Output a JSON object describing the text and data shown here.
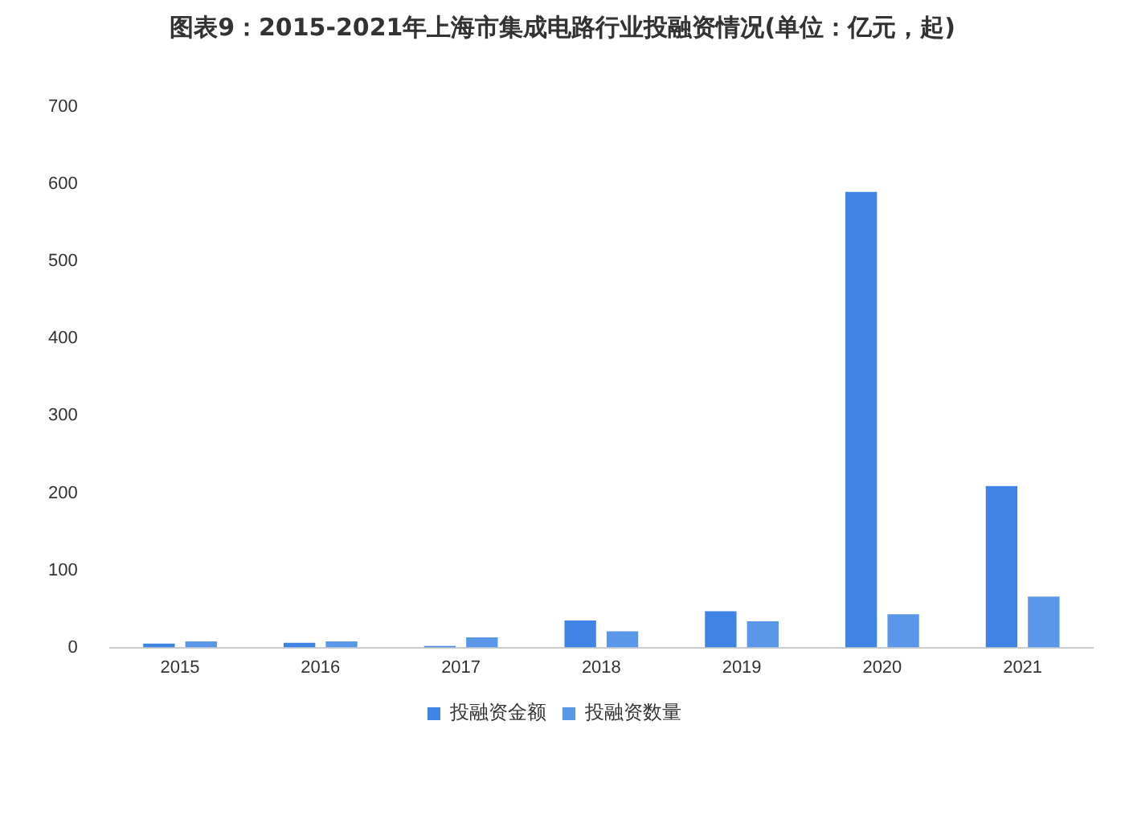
{
  "chart_data": {
    "type": "bar",
    "title": "图表9：2015-2021年上海市集成电路行业投融资情况(单位：亿元，起)",
    "categories": [
      "2015",
      "2016",
      "2017",
      "2018",
      "2019",
      "2020",
      "2021"
    ],
    "series": [
      {
        "name": "投融资金额",
        "color": "#3f84e5",
        "values": [
          5,
          6,
          2,
          35,
          47,
          590,
          209
        ]
      },
      {
        "name": "投融资数量",
        "color": "#5b97e9",
        "values": [
          8,
          8,
          13,
          21,
          34,
          43,
          66
        ]
      }
    ],
    "ylim": [
      0,
      700
    ],
    "yticks": [
      0,
      100,
      200,
      300,
      400,
      500,
      600,
      700
    ],
    "grid": false,
    "legend": "bottom"
  }
}
